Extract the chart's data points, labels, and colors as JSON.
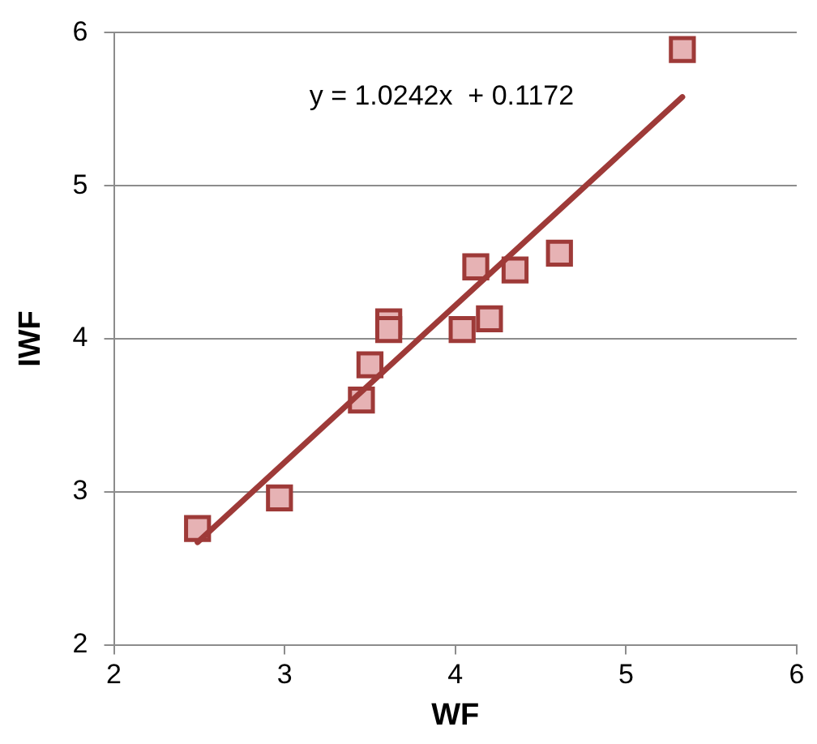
{
  "chart_data": {
    "type": "scatter",
    "xlabel": "WF",
    "ylabel": "IWF",
    "xlim": [
      2,
      6
    ],
    "xticks": [
      2,
      3,
      4,
      5,
      6
    ],
    "ylim": [
      2,
      6
    ],
    "yticks": [
      2,
      3,
      4,
      5,
      6
    ],
    "grid": "y",
    "legend": false,
    "marker": "square",
    "series": [
      {
        "color": "#e6b2b4",
        "x": [
          2.49,
          2.97,
          3.45,
          3.5,
          3.61,
          3.61,
          4.04,
          4.2,
          4.12,
          4.35,
          4.61,
          5.33
        ],
        "values": [
          2.76,
          2.96,
          3.6,
          3.83,
          4.11,
          4.06,
          4.06,
          4.13,
          4.47,
          4.45,
          4.56,
          5.89
        ]
      },
      {
        "type": "line",
        "color": "#9e3a38",
        "marker": "none",
        "x": [
          2.49,
          5.33
        ],
        "values": [
          2.67,
          5.58
        ]
      }
    ],
    "annotations": [
      "y = 1.0242x  + 0.1172"
    ]
  }
}
